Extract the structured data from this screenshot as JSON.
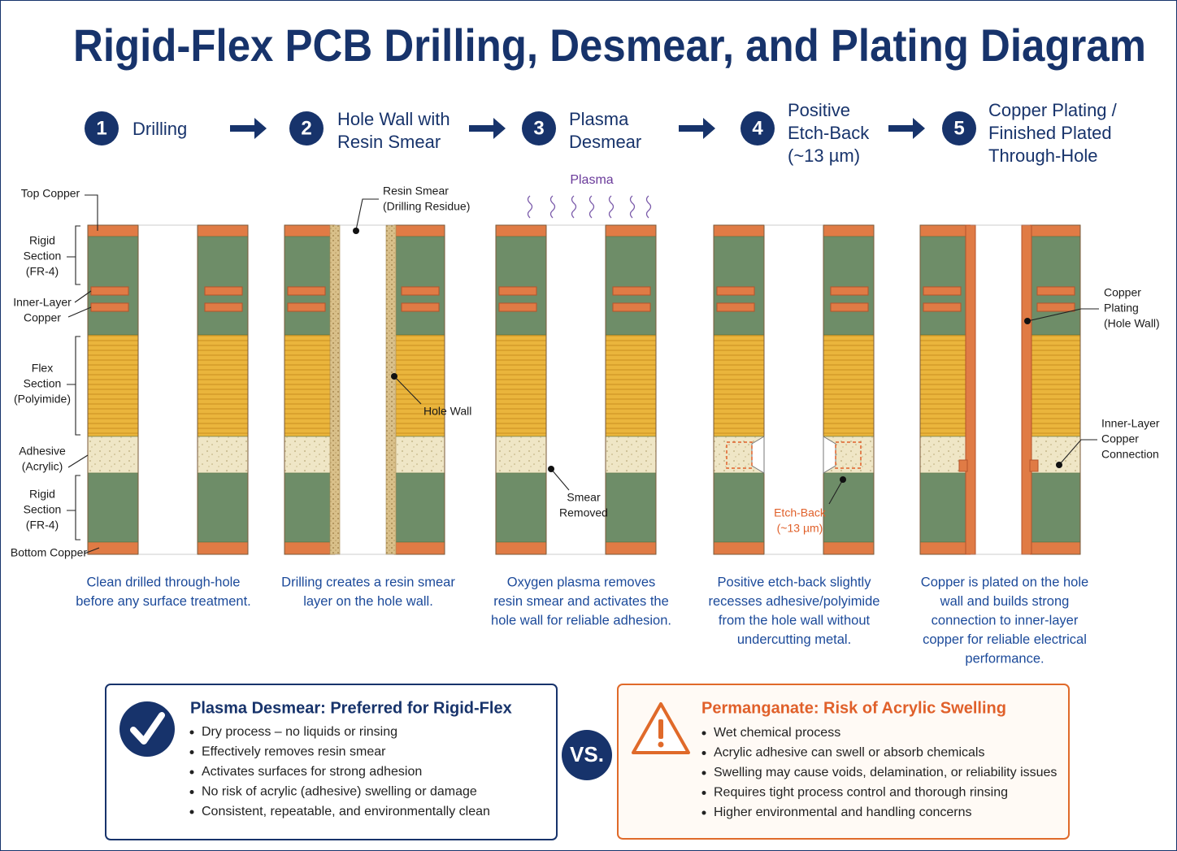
{
  "title": "Rigid-Flex PCB Drilling, Desmear, and Plating Diagram",
  "steps": [
    {
      "number": "1",
      "title": [
        "Drilling"
      ],
      "caption": [
        "Clean drilled through-hole",
        "before any surface treatment."
      ],
      "callouts": [
        [
          "Top Copper"
        ],
        [
          "Rigid",
          "Section",
          "(FR-4)"
        ],
        [
          "Inner-Layer",
          "Copper"
        ],
        [
          "Flex",
          "Section",
          "(Polyimide)"
        ],
        [
          "Adhesive",
          "(Acrylic)"
        ],
        [
          "Rigid",
          "Section",
          "(FR-4)"
        ],
        [
          "Bottom Copper"
        ]
      ]
    },
    {
      "number": "2",
      "title": [
        "Hole Wall with",
        "Resin Smear"
      ],
      "caption": [
        "Drilling creates a resin smear",
        "layer on the hole wall."
      ],
      "callouts": [
        [
          "Resin Smear",
          "(Drilling Residue)"
        ],
        [
          "Hole Wall"
        ]
      ]
    },
    {
      "number": "3",
      "title": [
        "Plasma",
        "Desmear"
      ],
      "caption": [
        "Oxygen plasma removes",
        "resin smear and activates the",
        "hole wall for reliable adhesion."
      ],
      "callouts": [
        [
          "Plasma"
        ],
        [
          "Smear",
          "Removed"
        ]
      ]
    },
    {
      "number": "4",
      "title": [
        "Positive",
        "Etch-Back",
        "(~13 µm)"
      ],
      "caption": [
        "Positive etch-back slightly",
        "recesses adhesive/polyimide",
        "from the hole wall without",
        "undercutting metal."
      ],
      "callouts": [
        [
          "Etch-Back",
          "(~13 µm)"
        ]
      ]
    },
    {
      "number": "5",
      "title": [
        "Copper Plating /",
        "Finished Plated",
        "Through-Hole"
      ],
      "caption": [
        "Copper is plated on the hole",
        "wall and builds strong",
        "connection to inner-layer",
        "copper for reliable electrical",
        "performance."
      ],
      "callouts": [
        [
          "Copper",
          "Plating",
          "(Hole Wall)"
        ],
        [
          "Inner-Layer",
          "Copper",
          "Connection"
        ]
      ]
    }
  ],
  "comparison": {
    "left": {
      "title": "Plasma Desmear: Preferred for Rigid-Flex",
      "items": [
        "Dry process – no liquids or rinsing",
        "Effectively removes resin smear",
        "Activates surfaces for strong adhesion",
        "No risk of acrylic (adhesive) swelling or damage",
        "Consistent, repeatable, and environmentally clean"
      ]
    },
    "vs": "VS.",
    "right": {
      "title": "Permanganate: Risk of Acrylic Swelling",
      "items": [
        "Wet chemical process",
        "Acrylic adhesive can swell or absorb chemicals",
        "Swelling may cause voids, delamination, or reliability issues",
        "Requires tight process control and thorough rinsing",
        "Higher environmental and handling concerns"
      ]
    }
  }
}
